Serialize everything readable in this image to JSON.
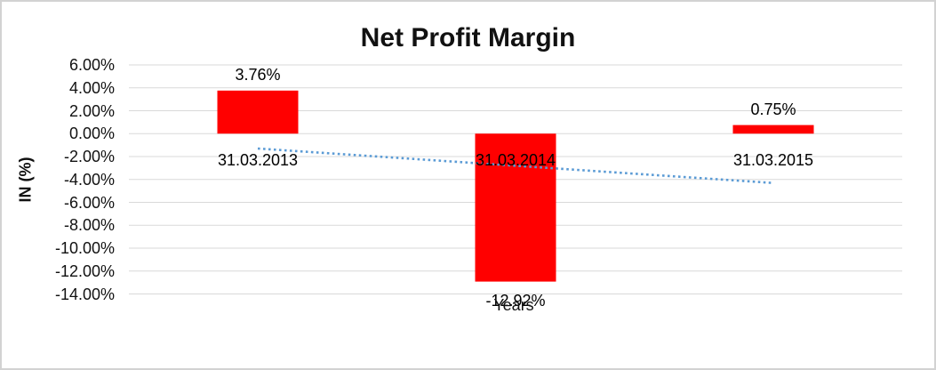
{
  "chart_data": {
    "type": "bar",
    "title": "Net Profit Margin",
    "xlabel": "Years",
    "ylabel": "IN (%)",
    "categories": [
      "31.03.2013",
      "31.03.2014",
      "31.03.2015"
    ],
    "values": [
      3.76,
      -12.92,
      0.75
    ],
    "data_labels": [
      "3.76%",
      "-12.92%",
      "0.75%"
    ],
    "yticks": [
      "6.00%",
      "4.00%",
      "2.00%",
      "0.00%",
      "-2.00%",
      "-4.00%",
      "-6.00%",
      "-8.00%",
      "-10.00%",
      "-12.00%",
      "-14.00%"
    ],
    "ytick_values": [
      6,
      4,
      2,
      0,
      -2,
      -4,
      -6,
      -8,
      -10,
      -12,
      -14
    ],
    "ylim": [
      -14,
      6
    ],
    "grid": true,
    "legend": "none",
    "bar_color": "#FF0000",
    "gridline_color": "#D9D9D9",
    "text_color": "#111111",
    "trendline": {
      "type": "linear",
      "style": "dotted",
      "color": "#5B9BD5",
      "start_value": -1.3,
      "end_value": -4.31
    }
  }
}
